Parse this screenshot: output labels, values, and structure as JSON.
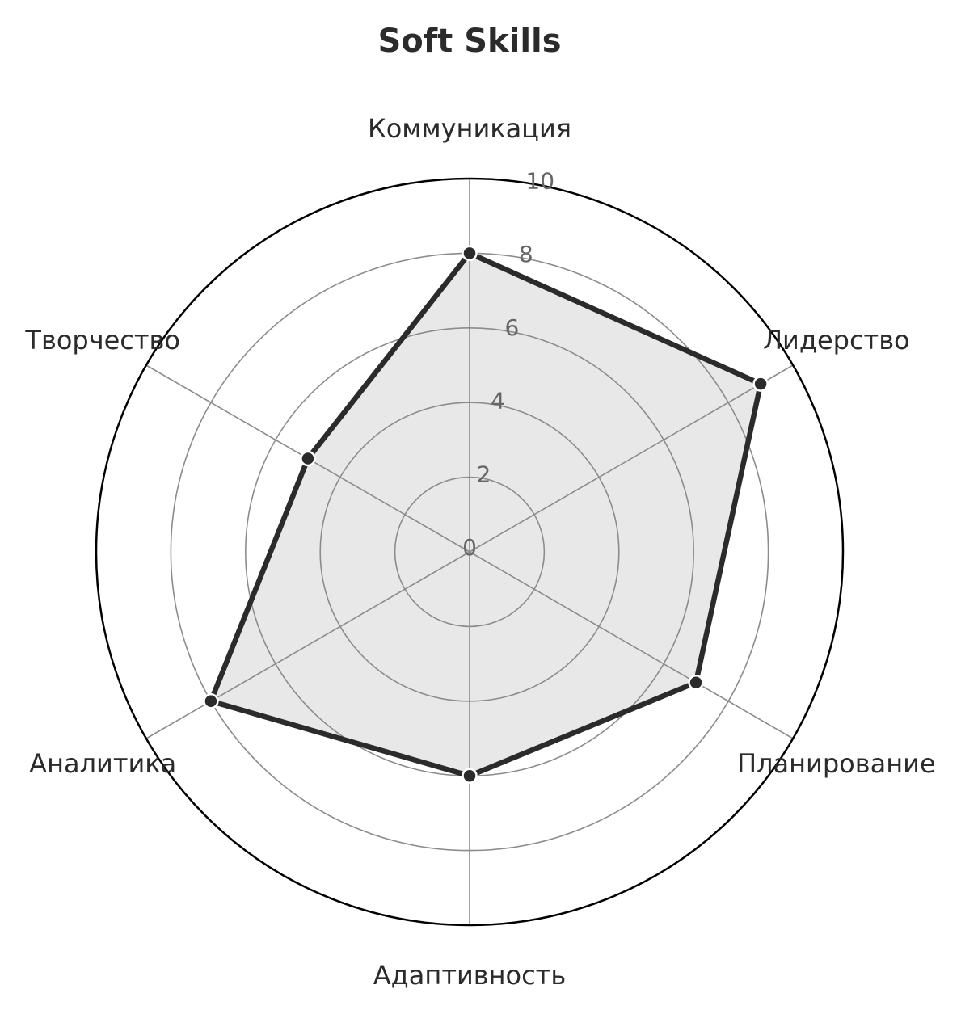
{
  "chart_data": {
    "type": "radar",
    "title": "Soft Skills",
    "categories": [
      "Коммуникация",
      "Лидерство",
      "Планирование",
      "Адаптивность",
      "Аналитика",
      "Творчество"
    ],
    "series": [
      {
        "values": [
          8,
          9,
          7,
          6,
          8,
          5
        ]
      }
    ],
    "rlim": [
      0,
      10
    ],
    "r_ticks": [
      "0",
      "2",
      "4",
      "6",
      "8",
      "10"
    ],
    "grid": true,
    "colors": {
      "line": "#2b2b2b",
      "fill": "#e8e8e8",
      "grid": "#8c8c8c",
      "outline": "#000000",
      "marker_edge": "#ffffff"
    }
  }
}
